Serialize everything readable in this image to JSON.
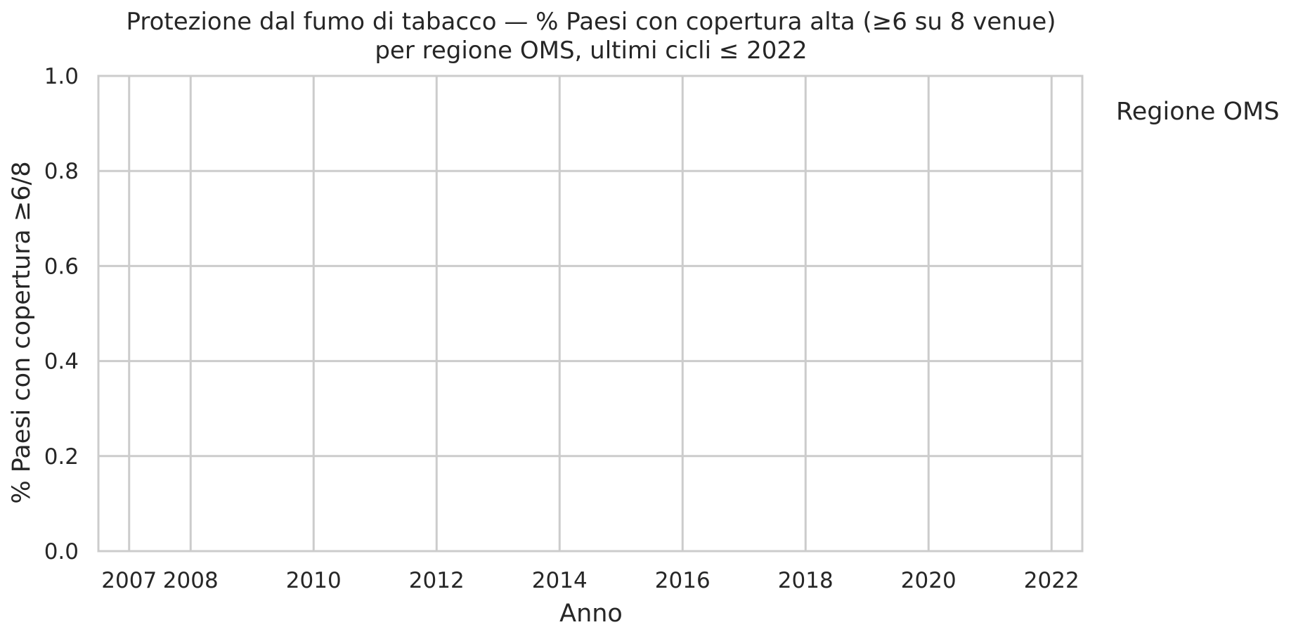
{
  "chart_data": {
    "type": "line",
    "title": "Protezione dal fumo di tabacco — % Paesi con copertura alta (≥6 su 8 venue)",
    "subtitle": "per regione OMS, ultimi cicli ≤ 2022",
    "xlabel": "Anno",
    "ylabel": "% Paesi con copertura ≥6/8",
    "x_ticks": [
      2007,
      2008,
      2010,
      2012,
      2014,
      2016,
      2018,
      2020,
      2022
    ],
    "y_ticks": [
      0.0,
      0.2,
      0.4,
      0.6,
      0.8,
      1.0
    ],
    "y_tick_labels": [
      "0.0",
      "0.2",
      "0.4",
      "0.6",
      "0.8",
      "1.0"
    ],
    "xlim": [
      2006.5,
      2022.5
    ],
    "ylim": [
      0.0,
      1.0
    ],
    "grid": true,
    "legend_title": "Regione OMS",
    "legend_placement": "outside-right-top",
    "series": []
  },
  "colors": {
    "grid": "#cccccc",
    "spine": "#cccccc",
    "text": "#262626",
    "background": "#ffffff"
  }
}
